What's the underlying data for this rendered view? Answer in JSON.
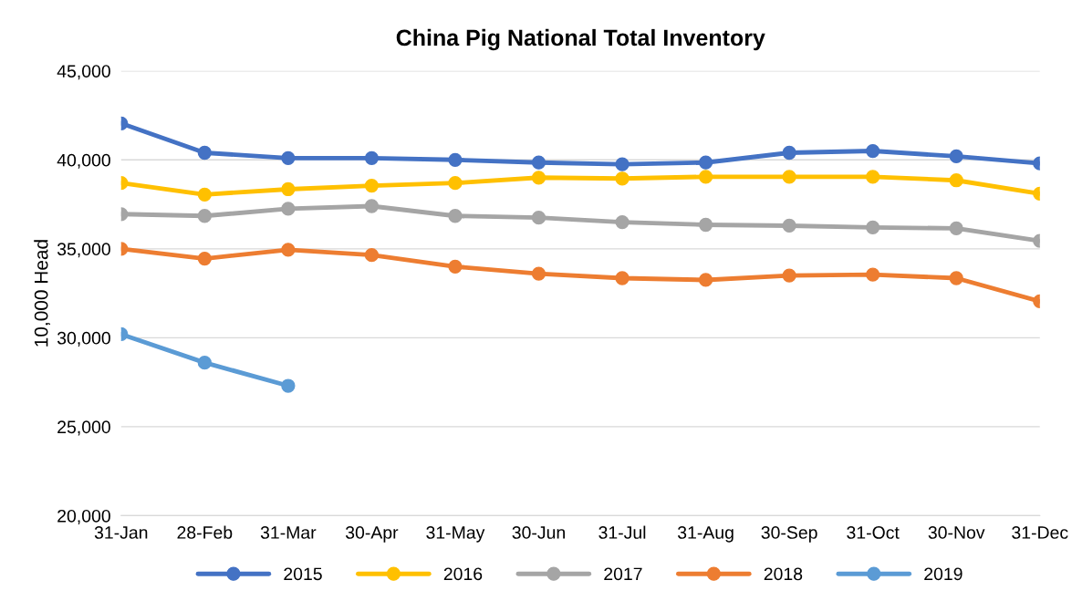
{
  "chart_data": {
    "type": "line",
    "title": "China Pig National Total Inventory",
    "ylabel": "10,000 Head",
    "categories": [
      "31-Jan",
      "28-Feb",
      "31-Mar",
      "30-Apr",
      "31-May",
      "30-Jun",
      "31-Jul",
      "31-Aug",
      "30-Sep",
      "31-Oct",
      "30-Nov",
      "31-Dec"
    ],
    "series": [
      {
        "name": "2015",
        "color": "#4472c4",
        "values": [
          42050,
          40400,
          40100,
          40100,
          40000,
          39850,
          39750,
          39850,
          40400,
          40500,
          40200,
          39800
        ]
      },
      {
        "name": "2016",
        "color": "#ffc000",
        "values": [
          38700,
          38050,
          38350,
          38550,
          38700,
          39000,
          38950,
          39050,
          39050,
          39050,
          38850,
          38100
        ]
      },
      {
        "name": "2017",
        "color": "#a5a5a5",
        "values": [
          36950,
          36850,
          37250,
          37400,
          36850,
          36750,
          36500,
          36350,
          36300,
          36200,
          36150,
          35450
        ]
      },
      {
        "name": "2018",
        "color": "#ed7d31",
        "values": [
          35000,
          34450,
          34950,
          34650,
          34000,
          33600,
          33350,
          33250,
          33500,
          33550,
          33350,
          32050
        ]
      },
      {
        "name": "2019",
        "color": "#5b9bd5",
        "values": [
          30200,
          28600,
          27300,
          null,
          null,
          null,
          null,
          null,
          null,
          null,
          null,
          null
        ]
      }
    ],
    "ylim": [
      20000,
      45000
    ],
    "yticks": [
      {
        "value": 20000,
        "label": "20,000"
      },
      {
        "value": 25000,
        "label": "25,000"
      },
      {
        "value": 30000,
        "label": "30,000"
      },
      {
        "value": 35000,
        "label": "35,000"
      },
      {
        "value": 40000,
        "label": "40,000"
      },
      {
        "value": 45000,
        "label": "45,000"
      }
    ],
    "grid": "y",
    "legend": "bottom",
    "marker": "circle",
    "line_style": "solid"
  }
}
